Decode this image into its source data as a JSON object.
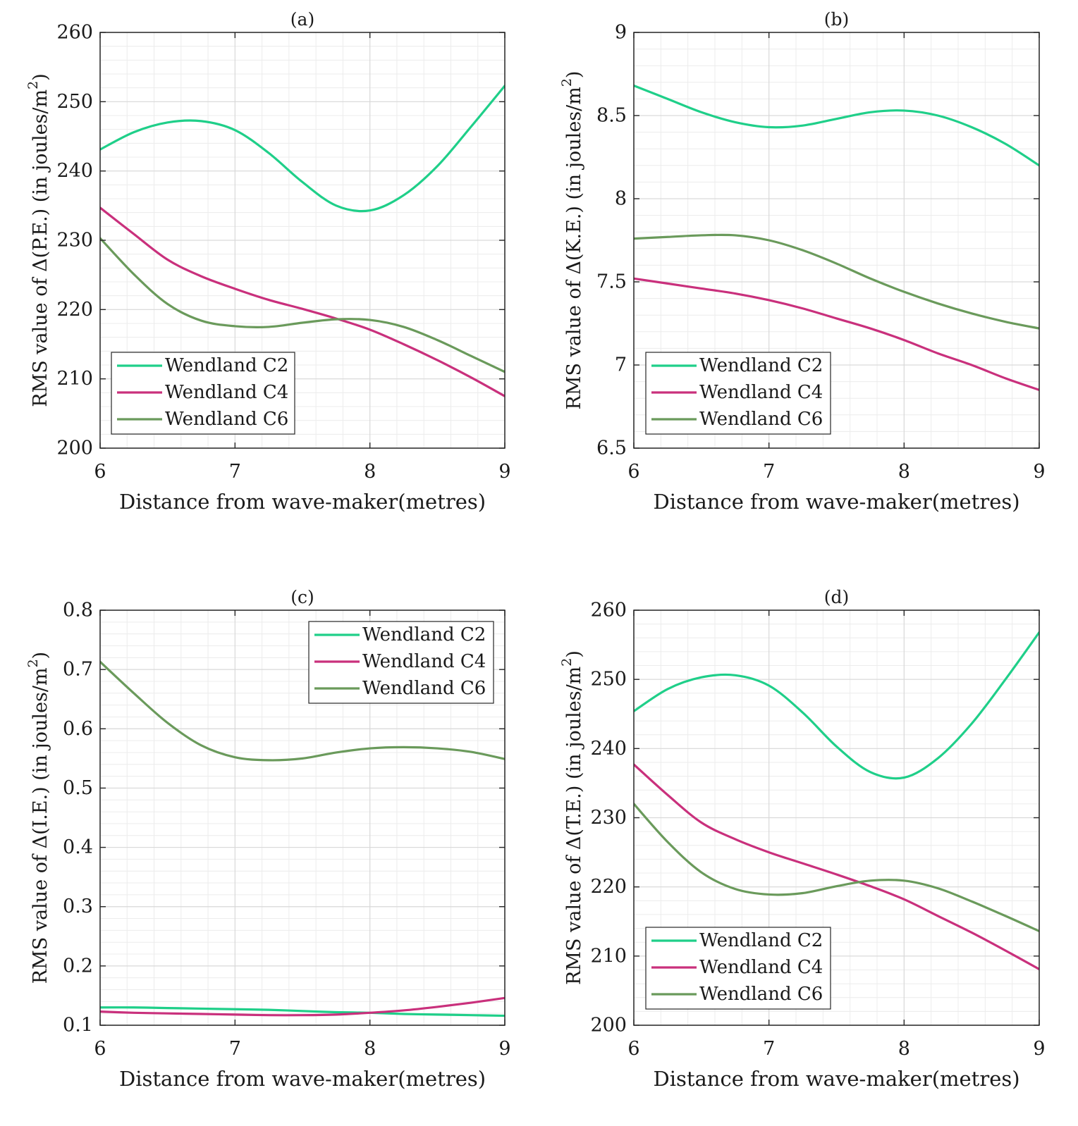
{
  "figure": {
    "panels_layout": "2x2"
  },
  "chart_data": [
    {
      "type": "line",
      "title": "(a)",
      "xlabel": "Distance from wave-maker(metres)",
      "ylabel": "RMS value of Δ(P.E.) (in joules/m²)",
      "xlim": [
        6,
        9
      ],
      "ylim": [
        200,
        260
      ],
      "xticks": [
        6,
        7,
        8,
        9
      ],
      "yticks": [
        200,
        210,
        220,
        230,
        240,
        250,
        260
      ],
      "grid": true,
      "legend": "bottom-left",
      "x": [
        6,
        6.25,
        6.5,
        6.75,
        7,
        7.25,
        7.5,
        7.75,
        8,
        8.25,
        8.5,
        8.75,
        9
      ],
      "series": [
        {
          "name": "Wendland C2",
          "color": "#1fcf89",
          "values": [
            243.1,
            245.6,
            247.0,
            247.2,
            245.9,
            242.6,
            238.4,
            235.0,
            234.3,
            236.5,
            240.7,
            246.4,
            252.3
          ]
        },
        {
          "name": "Wendland C4",
          "color": "#c9307c",
          "values": [
            234.7,
            230.9,
            227.2,
            224.8,
            223.0,
            221.4,
            220.1,
            218.7,
            217.1,
            215.0,
            212.7,
            210.2,
            207.5
          ]
        },
        {
          "name": "Wendland C6",
          "color": "#6a9a5b",
          "values": [
            230.3,
            225.1,
            220.8,
            218.4,
            217.6,
            217.5,
            218.1,
            218.6,
            218.5,
            217.5,
            215.6,
            213.3,
            211.0
          ]
        }
      ]
    },
    {
      "type": "line",
      "title": "(b)",
      "xlabel": "Distance from wave-maker(metres)",
      "ylabel": "RMS value of Δ(K.E.) (in joules/m²)",
      "xlim": [
        6,
        9
      ],
      "ylim": [
        6.5,
        9
      ],
      "xticks": [
        6,
        7,
        8,
        9
      ],
      "yticks": [
        6.5,
        7,
        7.5,
        8,
        8.5,
        9
      ],
      "grid": true,
      "legend": "bottom-left",
      "x": [
        6,
        6.25,
        6.5,
        6.75,
        7,
        7.25,
        7.5,
        7.75,
        8,
        8.25,
        8.5,
        8.75,
        9
      ],
      "series": [
        {
          "name": "Wendland C2",
          "color": "#1fcf89",
          "values": [
            8.68,
            8.6,
            8.52,
            8.46,
            8.43,
            8.44,
            8.48,
            8.52,
            8.53,
            8.5,
            8.43,
            8.33,
            8.2
          ]
        },
        {
          "name": "Wendland C4",
          "color": "#c9307c",
          "values": [
            7.52,
            7.49,
            7.46,
            7.43,
            7.39,
            7.34,
            7.28,
            7.22,
            7.15,
            7.07,
            7.0,
            6.92,
            6.85
          ]
        },
        {
          "name": "Wendland C6",
          "color": "#6a9a5b",
          "values": [
            7.76,
            7.77,
            7.78,
            7.78,
            7.75,
            7.69,
            7.61,
            7.52,
            7.44,
            7.37,
            7.31,
            7.26,
            7.22
          ]
        }
      ]
    },
    {
      "type": "line",
      "title": "(c)",
      "xlabel": "Distance from wave-maker(metres)",
      "ylabel": "RMS value of Δ(I.E.) (in joules/m²)",
      "xlim": [
        6,
        9
      ],
      "ylim": [
        0.1,
        0.8
      ],
      "xticks": [
        6,
        7,
        8,
        9
      ],
      "yticks": [
        0.1,
        0.2,
        0.3,
        0.4,
        0.5,
        0.6,
        0.7,
        0.8
      ],
      "grid": true,
      "legend": "top-right",
      "x": [
        6,
        6.25,
        6.5,
        6.75,
        7,
        7.25,
        7.5,
        7.75,
        8,
        8.25,
        8.5,
        8.75,
        9
      ],
      "series": [
        {
          "name": "Wendland C2",
          "color": "#1fcf89",
          "values": [
            0.13,
            0.13,
            0.129,
            0.128,
            0.127,
            0.126,
            0.124,
            0.122,
            0.121,
            0.119,
            0.118,
            0.117,
            0.116
          ]
        },
        {
          "name": "Wendland C4",
          "color": "#c9307c",
          "values": [
            0.123,
            0.121,
            0.12,
            0.119,
            0.118,
            0.117,
            0.117,
            0.118,
            0.121,
            0.125,
            0.131,
            0.138,
            0.146
          ]
        },
        {
          "name": "Wendland C6",
          "color": "#6a9a5b",
          "values": [
            0.713,
            0.66,
            0.61,
            0.572,
            0.552,
            0.547,
            0.55,
            0.56,
            0.567,
            0.569,
            0.567,
            0.561,
            0.549
          ]
        }
      ]
    },
    {
      "type": "line",
      "title": "(d)",
      "xlabel": "Distance from wave-maker(metres)",
      "ylabel": "RMS value of Δ(T.E.) (in joules/m²)",
      "xlim": [
        6,
        9
      ],
      "ylim": [
        200,
        260
      ],
      "xticks": [
        6,
        7,
        8,
        9
      ],
      "yticks": [
        200,
        210,
        220,
        230,
        240,
        250,
        260
      ],
      "grid": true,
      "legend": "bottom-left",
      "x": [
        6,
        6.25,
        6.5,
        6.75,
        7,
        7.25,
        7.5,
        7.75,
        8,
        8.25,
        8.5,
        8.75,
        9
      ],
      "series": [
        {
          "name": "Wendland C2",
          "color": "#1fcf89",
          "values": [
            245.4,
            248.6,
            250.3,
            250.6,
            249.1,
            245.2,
            240.3,
            236.6,
            235.8,
            238.6,
            243.6,
            250.0,
            256.8
          ]
        },
        {
          "name": "Wendland C4",
          "color": "#c9307c",
          "values": [
            237.7,
            233.3,
            229.3,
            226.9,
            225.0,
            223.4,
            221.8,
            220.1,
            218.2,
            215.8,
            213.4,
            210.8,
            208.1
          ]
        },
        {
          "name": "Wendland C6",
          "color": "#6a9a5b",
          "values": [
            232.0,
            226.5,
            222.1,
            219.7,
            218.9,
            219.1,
            220.1,
            220.9,
            220.9,
            219.8,
            217.9,
            215.8,
            213.6
          ]
        }
      ]
    }
  ]
}
